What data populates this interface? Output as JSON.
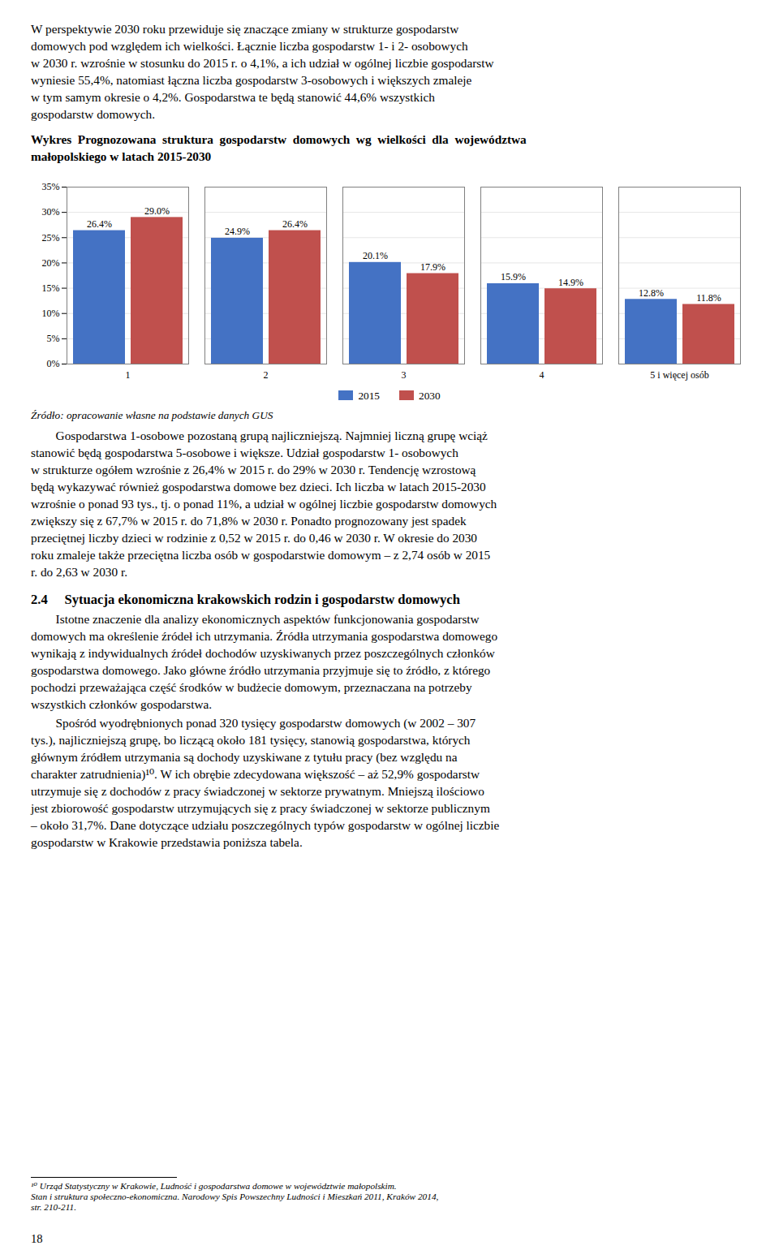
{
  "paragraph_1": [
    "W perspektywie 2030 roku przewiduje się znaczące zmiany w strukturze gospodarstw",
    "domowych pod względem ich wielkości. Łącznie liczba gospodarstw 1- i 2- osobowych",
    "w 2030 r. wzrośnie w stosunku do 2015 r. o 4,1%, a ich udział w ogólnej liczbie gospodarstw",
    "wyniesie 55,4%, natomiast łączna liczba gospodarstw 3-osobowych i większych zmaleje",
    "w tym samym okresie o 4,2%. Gospodarstwa te będą stanowić 44,6% wszystkich",
    "gospodarstw domowych."
  ],
  "chart_data": {
    "type": "bar",
    "title": "Wykres  Prognozowana  struktura  gospodarstw  domowych  wg  wielkości  dla  województwa\nmałopolskiego w latach 2015-2030",
    "categories": [
      "1",
      "2",
      "3",
      "4",
      "5 i więcej osób"
    ],
    "series": [
      {
        "name": "2015",
        "color": "#4472C4",
        "values": [
          26.4,
          24.9,
          20.1,
          15.9,
          12.8
        ],
        "value_labels": [
          "26.4%",
          "24.9%",
          "20.1%",
          "15.9%",
          "12.8%"
        ]
      },
      {
        "name": "2030",
        "color": "#C0504D",
        "values": [
          29.0,
          26.4,
          17.9,
          14.9,
          11.8
        ],
        "value_labels": [
          "29.0%",
          "26.4%",
          "17.9%",
          "14.9%",
          "11.8%"
        ]
      }
    ],
    "ylim": [
      0,
      35
    ],
    "yticks": [
      {
        "value": 0,
        "label": "0%"
      },
      {
        "value": 5,
        "label": "5%"
      },
      {
        "value": 10,
        "label": "10%"
      },
      {
        "value": 15,
        "label": "15%"
      },
      {
        "value": 20,
        "label": "20%"
      },
      {
        "value": 25,
        "label": "25%"
      },
      {
        "value": 30,
        "label": "30%"
      },
      {
        "value": 35,
        "label": "35%"
      }
    ],
    "grid": true,
    "legend": "bottom",
    "data_labels": true,
    "source": "Źródło: opracowanie własne na podstawie danych GUS"
  },
  "paragraph_2": [
    "        Gospodarstwa 1-osobowe pozostaną grupą najliczniejszą. Najmniej liczną grupę wciąż",
    "stanowić będą gospodarstwa 5-osobowe i większe. Udział gospodarstw 1- osobowych",
    "w strukturze ogółem wzrośnie z 26,4% w 2015 r. do 29% w 2030 r. Tendencję wzrostową",
    "będą wykazywać również gospodarstwa domowe bez dzieci. Ich liczba w latach 2015-2030",
    "wzrośnie o ponad 93 tys., tj. o ponad 11%, a udział w ogólnej liczbie gospodarstw domowych",
    "zwiększy się z 67,7% w 2015 r. do 71,8% w 2030 r. Ponadto prognozowany jest spadek",
    "przeciętnej liczby dzieci w rodzinie z 0,52 w 2015 r. do 0,46 w 2030 r. W okresie do 2030",
    "roku zmaleje także przeciętna liczba osób w gospodarstwie domowym – z 2,74 osób w 2015",
    "r. do 2,63 w 2030 r."
  ],
  "section_header": "2.4  Sytuacja ekonomiczna krakowskich rodzin i gospodarstw domowych",
  "paragraph_3": [
    "        Istotne znaczenie dla analizy ekonomicznych aspektów funkcjonowania gospodarstw",
    "domowych ma określenie źródeł ich utrzymania. Źródła utrzymania gospodarstwa domowego",
    "wynikają z indywidualnych źródeł dochodów uzyskiwanych przez poszczególnych członków",
    "gospodarstwa domowego. Jako główne źródło utrzymania przyjmuje się to źródło, z którego",
    "pochodzi przeważająca część środków w budżecie domowym, przeznaczana na potrzeby",
    "wszystkich członków gospodarstwa."
  ],
  "paragraph_4": [
    "        Spośród wyodrębnionych ponad 320 tysięcy gospodarstw domowych (w 2002 – 307",
    "tys.), najliczniejszą grupę, bo liczącą około 181 tysięcy, stanowią gospodarstwa, których",
    "głównym źródłem utrzymania są dochody uzyskiwane z tytułu pracy (bez względu na",
    "charakter zatrudnienia)¹⁰. W ich obrębie zdecydowana większość – aż 52,9% gospodarstw",
    "utrzymuje się z dochodów z pracy świadczonej w sektorze prywatnym. Mniejszą ilościowo",
    "jest zbiorowość gospodarstw utrzymujących się z pracy świadczonej w sektorze publicznym",
    "– około 31,7%. Dane dotyczące udziału poszczególnych typów gospodarstw w ogólnej liczbie",
    "gospodarstw w Krakowie przedstawia poniższa tabela."
  ],
  "footnote": [
    "¹⁰ Urząd Statystyczny w Krakowie, Ludność i gospodarstwa domowe w województwie małopolskim.",
    "Stan i struktura społeczno-ekonomiczna. Narodowy Spis Powszechny Ludności i Mieszkań 2011, Kraków 2014,",
    "str. 210-211."
  ],
  "page_number": "18"
}
